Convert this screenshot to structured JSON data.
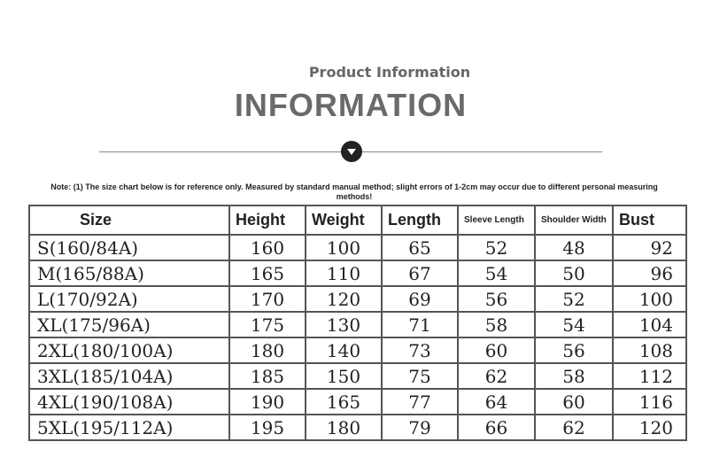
{
  "subtitle": "Product Information",
  "title": "INFORMATION",
  "divider_icon": "chevron-down-circle-icon",
  "note": "Note: (1) The size chart below is for reference only. Measured by standard manual method; slight errors of 1-2cm may occur due to different personal measuring methods!",
  "headers": [
    "Size",
    "Height",
    "Weight",
    "Length",
    "Sleeve Length",
    "Shoulder Width",
    "Bust"
  ],
  "rows": [
    [
      "S(160/84A)",
      "160",
      "100",
      "65",
      "52",
      "48",
      "92"
    ],
    [
      "M(165/88A)",
      "165",
      "110",
      "67",
      "54",
      "50",
      "96"
    ],
    [
      "L(170/92A)",
      "170",
      "120",
      "69",
      "56",
      "52",
      "100"
    ],
    [
      "XL(175/96A)",
      "175",
      "130",
      "71",
      "58",
      "54",
      "104"
    ],
    [
      "2XL(180/100A)",
      "180",
      "140",
      "73",
      "60",
      "56",
      "108"
    ],
    [
      "3XL(185/104A)",
      "185",
      "150",
      "75",
      "62",
      "58",
      "112"
    ],
    [
      "4XL(190/108A)",
      "190",
      "165",
      "77",
      "64",
      "60",
      "116"
    ],
    [
      "5XL(195/112A)",
      "195",
      "180",
      "79",
      "66",
      "62",
      "120"
    ]
  ]
}
